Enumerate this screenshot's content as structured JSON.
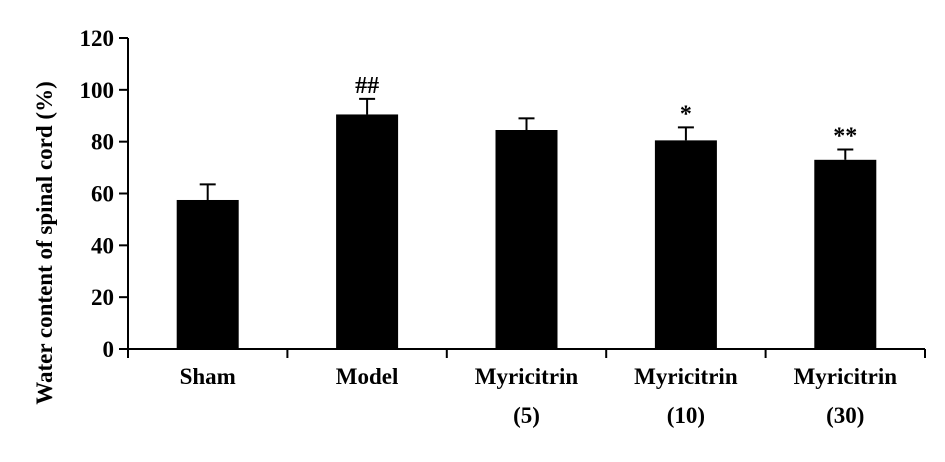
{
  "chart_data": {
    "type": "bar",
    "title": "",
    "xlabel": "",
    "ylabel": "Water content of spinal cord (%)",
    "ylim": [
      0,
      120
    ],
    "yticks": [
      0,
      20,
      40,
      60,
      80,
      100,
      120
    ],
    "categories": [
      [
        "Sham"
      ],
      [
        "Model"
      ],
      [
        "Myricitrin",
        "(5)"
      ],
      [
        "Myricitrin",
        "(10)"
      ],
      [
        "Myricitrin",
        "(30)"
      ]
    ],
    "values": [
      57.5,
      90.5,
      84.5,
      80.5,
      73
    ],
    "errors": [
      6,
      6,
      4.5,
      5,
      4
    ],
    "annotations": [
      "",
      "##",
      "",
      "*",
      "**"
    ],
    "bar_color": "#000000",
    "grid": false,
    "legend": "none"
  }
}
